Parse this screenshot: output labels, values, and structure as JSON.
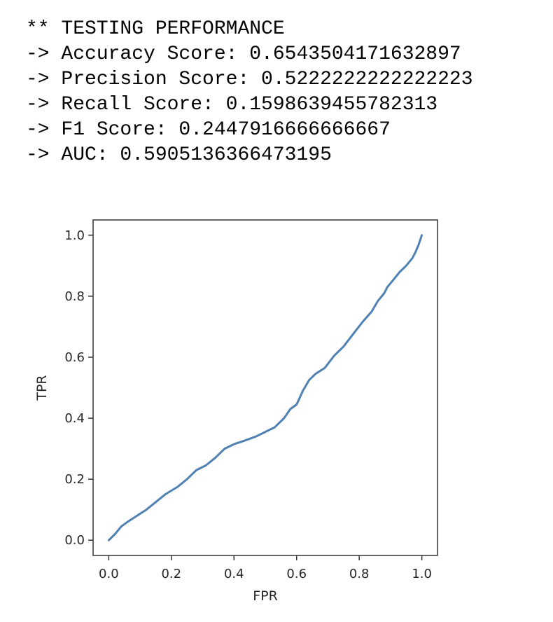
{
  "console": {
    "lines": [
      "** TESTING PERFORMANCE",
      "-> Accuracy Score: 0.6543504171632897",
      "-> Precision Score: 0.5222222222222223",
      "-> Recall Score: 0.1598639455782313",
      "-> F1 Score: 0.2447916666666667",
      "-> AUC: 0.5905136366473195"
    ]
  },
  "chart_data": {
    "type": "line",
    "xlabel": "FPR",
    "ylabel": "TPR",
    "xlim": [
      -0.05,
      1.05
    ],
    "ylim": [
      -0.05,
      1.05
    ],
    "xticks": [
      0.0,
      0.2,
      0.4,
      0.6,
      0.8,
      1.0
    ],
    "yticks": [
      0.0,
      0.2,
      0.4,
      0.6,
      0.8,
      1.0
    ],
    "xtick_labels": [
      "0.0",
      "0.2",
      "0.4",
      "0.6",
      "0.8",
      "1.0"
    ],
    "ytick_labels": [
      "0.0",
      "0.2",
      "0.4",
      "0.6",
      "0.8",
      "1.0"
    ],
    "grid": false,
    "line_color": "#4f81b3",
    "series": [
      {
        "x": [
          0.0,
          0.02,
          0.04,
          0.06,
          0.09,
          0.12,
          0.15,
          0.18,
          0.22,
          0.25,
          0.28,
          0.31,
          0.34,
          0.37,
          0.4,
          0.43,
          0.47,
          0.5,
          0.53,
          0.56,
          0.58,
          0.6,
          0.62,
          0.64,
          0.66,
          0.69,
          0.72,
          0.75,
          0.78,
          0.81,
          0.84,
          0.86,
          0.88,
          0.89,
          0.91,
          0.93,
          0.95,
          0.97,
          0.98,
          0.99,
          1.0
        ],
        "y": [
          0.0,
          0.02,
          0.045,
          0.06,
          0.08,
          0.1,
          0.125,
          0.15,
          0.175,
          0.2,
          0.23,
          0.245,
          0.27,
          0.3,
          0.315,
          0.325,
          0.34,
          0.355,
          0.37,
          0.4,
          0.43,
          0.445,
          0.49,
          0.525,
          0.545,
          0.565,
          0.605,
          0.635,
          0.675,
          0.715,
          0.75,
          0.785,
          0.81,
          0.83,
          0.855,
          0.88,
          0.9,
          0.925,
          0.945,
          0.97,
          1.0
        ]
      }
    ]
  }
}
